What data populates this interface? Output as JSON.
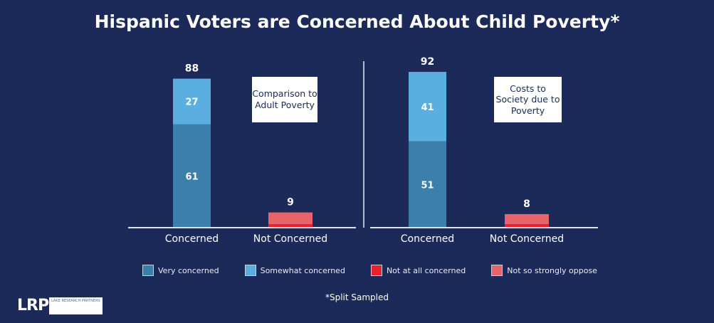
{
  "title": "Hispanic Voters are Concerned About Child Poverty*",
  "chart_data": [
    {
      "type": "bar",
      "stacked": true,
      "note": "Comparison to Adult Poverty",
      "categories": [
        "Concerned",
        "Not Concerned"
      ],
      "totals": [
        88,
        9
      ],
      "series": [
        {
          "name": "Very concerned",
          "values": [
            61,
            0
          ],
          "labels": [
            "61",
            ""
          ]
        },
        {
          "name": "Somewhat concerned",
          "values": [
            27,
            0
          ],
          "labels": [
            "27",
            ""
          ]
        },
        {
          "name": "Not at all concerned",
          "values": [
            0,
            2
          ],
          "labels": [
            "",
            ""
          ]
        },
        {
          "name": "Not so strongly oppose",
          "values": [
            0,
            7
          ],
          "labels": [
            "",
            ""
          ]
        }
      ]
    },
    {
      "type": "bar",
      "stacked": true,
      "note": "Costs to Society due to Poverty",
      "categories": [
        "Concerned",
        "Not Concerned"
      ],
      "totals": [
        92,
        8
      ],
      "series": [
        {
          "name": "Very concerned",
          "values": [
            51,
            0
          ],
          "labels": [
            "51",
            ""
          ]
        },
        {
          "name": "Somewhat concerned",
          "values": [
            41,
            0
          ],
          "labels": [
            "41",
            ""
          ]
        },
        {
          "name": "Not at all concerned",
          "values": [
            0,
            2
          ],
          "labels": [
            "",
            ""
          ]
        },
        {
          "name": "Not so strongly oppose",
          "values": [
            0,
            6
          ],
          "labels": [
            "",
            ""
          ]
        }
      ]
    }
  ],
  "legend": [
    {
      "label": "Very concerned",
      "color": "#3d7fab"
    },
    {
      "label": "Somewhat concerned",
      "color": "#5aaee0"
    },
    {
      "label": "Not at all concerned",
      "color": "#e8232b"
    },
    {
      "label": "Not so strongly oppose",
      "color": "#e6646a"
    }
  ],
  "footnote": "*Split Sampled",
  "logo": {
    "mark": "LRP",
    "text": "LAKE RESEARCH PARTNERS"
  }
}
